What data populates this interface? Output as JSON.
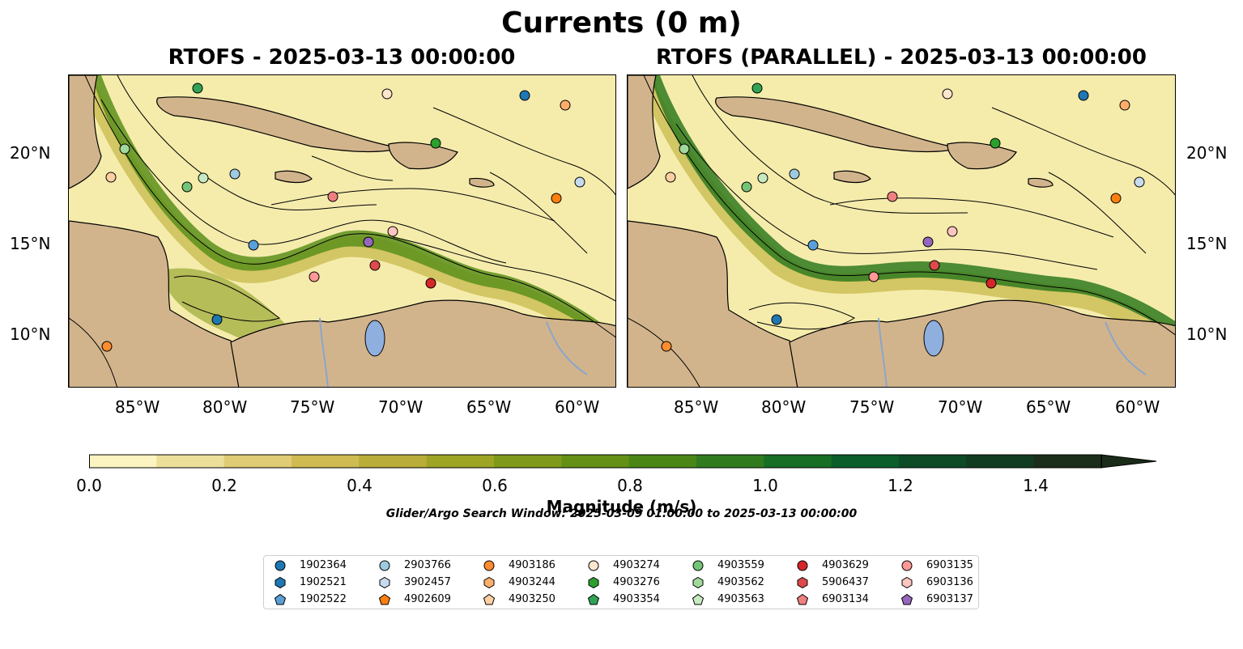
{
  "title": "Currents (0 m)",
  "panels": {
    "left_title": "RTOFS - 2025-03-13 00:00:00",
    "right_title": "RTOFS (PARALLEL) - 2025-03-13 00:00:00"
  },
  "axes": {
    "lon_ticks": [
      "85°W",
      "80°W",
      "75°W",
      "70°W",
      "65°W",
      "60°W"
    ],
    "lat_ticks": [
      "20°N",
      "15°N",
      "10°N"
    ]
  },
  "colorbar": {
    "label": "Magnitude (m/s)",
    "ticks": [
      "0.0",
      "0.2",
      "0.4",
      "0.6",
      "0.8",
      "1.0",
      "1.2",
      "1.4"
    ],
    "colors": [
      "#fbf4c0",
      "#ecdf9a",
      "#e0cc74",
      "#d0bb52",
      "#b9ac38",
      "#9ea424",
      "#7f9a1a",
      "#649015",
      "#4a8616",
      "#307b1e",
      "#176e25",
      "#0b5e29",
      "#0d4a26",
      "#123c22",
      "#1a2e1a",
      "#1a2b18"
    ]
  },
  "search_window": "Glider/Argo Search Window: 2025-03-09 01:00:00 to 2025-03-13 00:00:00",
  "colors": {
    "land": "#d2b48c",
    "lake": "#8fb0de",
    "river": "#8aa6cc"
  },
  "legend": [
    {
      "id": "1902364",
      "marker": "circle",
      "color": "#1f77b4"
    },
    {
      "id": "1902521",
      "marker": "hexagon",
      "color": "#1f77b4"
    },
    {
      "id": "1902522",
      "marker": "pentagon",
      "color": "#5aa0d8"
    },
    {
      "id": "2903766",
      "marker": "circle",
      "color": "#9ecae1"
    },
    {
      "id": "3902457",
      "marker": "hexagon",
      "color": "#c6dbef"
    },
    {
      "id": "4902609",
      "marker": "pentagon",
      "color": "#ff7f0e"
    },
    {
      "id": "4903186",
      "marker": "circle",
      "color": "#ff8c2e"
    },
    {
      "id": "4903244",
      "marker": "hexagon",
      "color": "#fdae6b"
    },
    {
      "id": "4903250",
      "marker": "pentagon",
      "color": "#fdd0a2"
    },
    {
      "id": "4903274",
      "marker": "circle",
      "color": "#fee6ce"
    },
    {
      "id": "4903276",
      "marker": "hexagon",
      "color": "#2ca02c"
    },
    {
      "id": "4903354",
      "marker": "pentagon",
      "color": "#31a354"
    },
    {
      "id": "4903559",
      "marker": "circle",
      "color": "#74c476"
    },
    {
      "id": "4903562",
      "marker": "hexagon",
      "color": "#a1d99b"
    },
    {
      "id": "4903563",
      "marker": "pentagon",
      "color": "#c7e9c0"
    },
    {
      "id": "4903629",
      "marker": "circle",
      "color": "#d62728"
    },
    {
      "id": "5906437",
      "marker": "hexagon",
      "color": "#de4a4a"
    },
    {
      "id": "6903134",
      "marker": "pentagon",
      "color": "#f08080"
    },
    {
      "id": "6903135",
      "marker": "circle",
      "color": "#ff9896"
    },
    {
      "id": "6903136",
      "marker": "hexagon",
      "color": "#fcc5c0"
    },
    {
      "id": "6903137",
      "marker": "pentagon",
      "color": "#9467bd"
    }
  ]
}
